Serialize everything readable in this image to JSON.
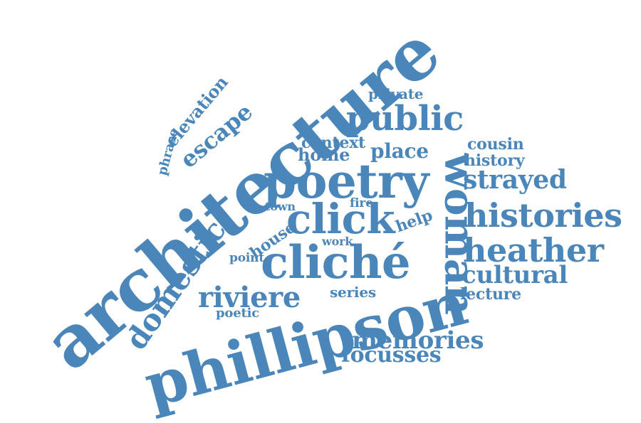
{
  "color": "#4a86ba",
  "words": [
    {
      "id": "architecture",
      "text": "architecture"
    },
    {
      "id": "phillipson",
      "text": "phillipson"
    },
    {
      "id": "poetry",
      "text": "poetry"
    },
    {
      "id": "cliche",
      "text": "cliché"
    },
    {
      "id": "click",
      "text": "click"
    },
    {
      "id": "woman",
      "text": "woman"
    },
    {
      "id": "public",
      "text": "public"
    },
    {
      "id": "histories",
      "text": "histories"
    },
    {
      "id": "heather",
      "text": "heather"
    },
    {
      "id": "domestic",
      "text": "domestic"
    },
    {
      "id": "riviere",
      "text": "riviere"
    },
    {
      "id": "memories",
      "text": "memories"
    },
    {
      "id": "focusses",
      "text": "focusses"
    },
    {
      "id": "cultural",
      "text": "cultural"
    },
    {
      "id": "strayed",
      "text": "strayed"
    },
    {
      "id": "escape",
      "text": "escape"
    },
    {
      "id": "elevation",
      "text": "elevation"
    },
    {
      "id": "phrase",
      "text": "phrase"
    },
    {
      "id": "private",
      "text": "private"
    },
    {
      "id": "context",
      "text": "context"
    },
    {
      "id": "home",
      "text": "home"
    },
    {
      "id": "place",
      "text": "place"
    },
    {
      "id": "cousin",
      "text": "cousin"
    },
    {
      "id": "history",
      "text": "history"
    },
    {
      "id": "lecture",
      "text": "lecture"
    },
    {
      "id": "series",
      "text": "series"
    },
    {
      "id": "poetic",
      "text": "poetic"
    },
    {
      "id": "town",
      "text": "town"
    },
    {
      "id": "fire",
      "text": "fire"
    },
    {
      "id": "help",
      "text": "help"
    },
    {
      "id": "house",
      "text": "house"
    },
    {
      "id": "work",
      "text": "work"
    },
    {
      "id": "point",
      "text": "point"
    }
  ]
}
